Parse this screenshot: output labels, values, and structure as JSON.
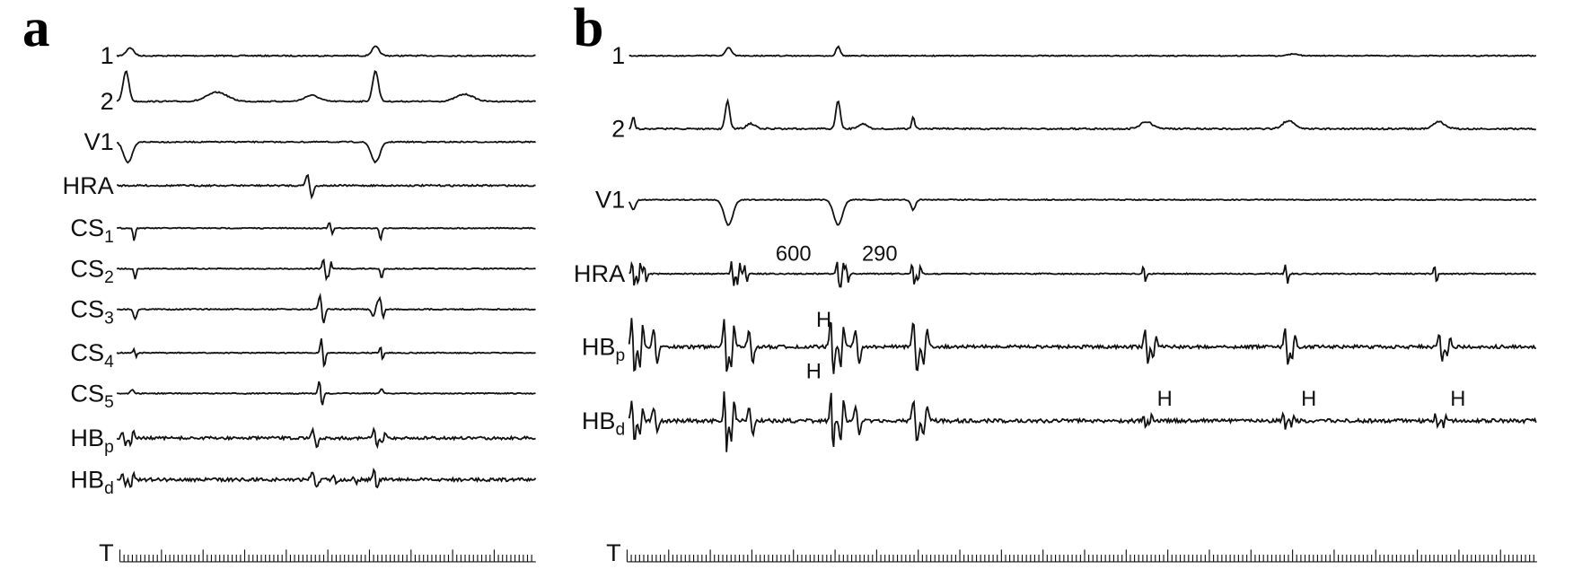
{
  "panels": [
    {
      "label": "a",
      "channels": [
        {
          "text": "1"
        },
        {
          "text": "2"
        },
        {
          "text": "V1"
        },
        {
          "text": "HRA"
        },
        {
          "text": "CS",
          "sub": "1"
        },
        {
          "text": "CS",
          "sub": "2"
        },
        {
          "text": "CS",
          "sub": "3"
        },
        {
          "text": "CS",
          "sub": "4"
        },
        {
          "text": "CS",
          "sub": "5"
        },
        {
          "text": "HB",
          "sub": "p"
        },
        {
          "text": "HB",
          "sub": "d"
        }
      ],
      "time_label": "T"
    },
    {
      "label": "b",
      "channels": [
        {
          "text": "1"
        },
        {
          "text": "2"
        },
        {
          "text": "V1"
        },
        {
          "text": "HRA"
        },
        {
          "text": "HB",
          "sub": "p"
        },
        {
          "text": "HB",
          "sub": "d"
        }
      ],
      "time_label": "T",
      "annotations": [
        "600",
        "290",
        "H",
        "H",
        "H",
        "H",
        "H"
      ]
    }
  ]
}
